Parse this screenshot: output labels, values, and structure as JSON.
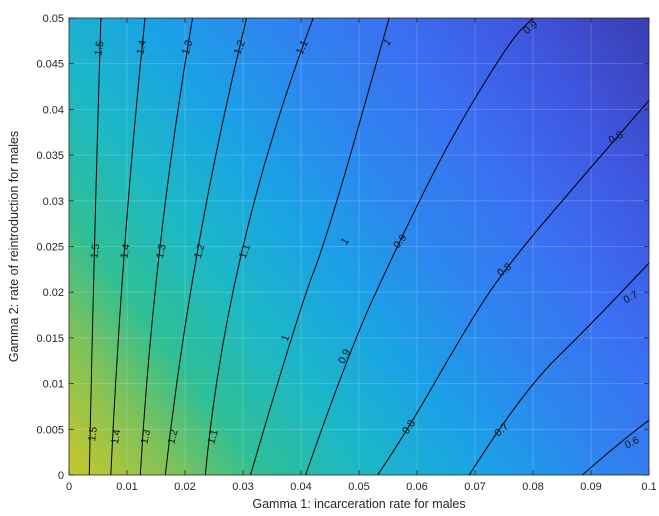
{
  "chart_data": {
    "type": "contour",
    "xlabel": "Gamma 1: incarceration rate for males",
    "ylabel": "Gamma 2: rate of reintroduction for males",
    "xlim": [
      0,
      0.1
    ],
    "ylim": [
      0,
      0.05
    ],
    "xticks": [
      "0",
      "0.01",
      "0.02",
      "0.03",
      "0.04",
      "0.05",
      "0.06",
      "0.07",
      "0.08",
      "0.09",
      "0.1"
    ],
    "yticks": [
      "0",
      "0.005",
      "0.01",
      "0.015",
      "0.02",
      "0.025",
      "0.03",
      "0.035",
      "0.04",
      "0.045",
      "0.05"
    ],
    "grid": true,
    "colormap": "parula",
    "contours": [
      {
        "level": "1.5",
        "points": [
          [
            0.0035,
            0
          ],
          [
            0.0044,
            0.025
          ],
          [
            0.0055,
            0.05
          ]
        ],
        "labels": [
          [
            0.004,
            0.0045,
            -82
          ],
          [
            0.0044,
            0.0245,
            -82
          ],
          [
            0.0051,
            0.0467,
            -82
          ]
        ]
      },
      {
        "level": "1.4",
        "points": [
          [
            0.0072,
            0
          ],
          [
            0.0096,
            0.025
          ],
          [
            0.0131,
            0.05
          ]
        ],
        "labels": [
          [
            0.008,
            0.0042,
            -80
          ],
          [
            0.0096,
            0.0245,
            -80
          ],
          [
            0.0124,
            0.0468,
            -78
          ]
        ]
      },
      {
        "level": "1.3",
        "points": [
          [
            0.0123,
            0
          ],
          [
            0.0157,
            0.025
          ],
          [
            0.0213,
            0.05
          ]
        ],
        "labels": [
          [
            0.0131,
            0.0042,
            -78
          ],
          [
            0.0158,
            0.0245,
            -78
          ],
          [
            0.0203,
            0.0468,
            -74
          ]
        ]
      },
      {
        "level": "1.2",
        "points": [
          [
            0.0166,
            0
          ],
          [
            0.0223,
            0.025
          ],
          [
            0.0306,
            0.05
          ]
        ],
        "labels": [
          [
            0.0178,
            0.0042,
            -76
          ],
          [
            0.0224,
            0.0245,
            -74
          ],
          [
            0.0293,
            0.0468,
            -70
          ]
        ]
      },
      {
        "level": "1.1",
        "points": [
          [
            0.0235,
            0
          ],
          [
            0.03,
            0.025
          ],
          [
            0.0421,
            0.05
          ]
        ],
        "labels": [
          [
            0.0247,
            0.0042,
            -74
          ],
          [
            0.0302,
            0.0245,
            -70
          ],
          [
            0.0401,
            0.0468,
            -64
          ]
        ]
      },
      {
        "level": "1",
        "points": [
          [
            0.0313,
            0
          ],
          [
            0.0395,
            0.0178
          ],
          [
            0.0445,
            0.026
          ],
          [
            0.0552,
            0.05
          ]
        ],
        "labels": [
          [
            0.0372,
            0.015,
            -68
          ],
          [
            0.0475,
            0.0256,
            -56
          ],
          [
            0.0548,
            0.0474,
            -50
          ]
        ]
      },
      {
        "level": "0.9",
        "points": [
          [
            0.0408,
            0
          ],
          [
            0.0482,
            0.0135
          ],
          [
            0.057,
            0.0256
          ],
          [
            0.0655,
            0.0365
          ],
          [
            0.076,
            0.0475
          ],
          [
            0.08,
            0.05
          ]
        ],
        "labels": [
          [
            0.0474,
            0.013,
            -64
          ],
          [
            0.057,
            0.0256,
            -52
          ],
          [
            0.0795,
            0.049,
            -36
          ]
        ]
      },
      {
        "level": "0.8",
        "points": [
          [
            0.0532,
            0
          ],
          [
            0.058,
            0.0045
          ],
          [
            0.0682,
            0.0158
          ],
          [
            0.075,
            0.0225
          ],
          [
            0.088,
            0.0322
          ],
          [
            0.1,
            0.041
          ]
        ],
        "labels": [
          [
            0.0585,
            0.0053,
            -55
          ],
          [
            0.075,
            0.0225,
            -38
          ],
          [
            0.0942,
            0.037,
            -30
          ]
        ]
      },
      {
        "level": "0.7",
        "points": [
          [
            0.069,
            0
          ],
          [
            0.078,
            0.009
          ],
          [
            0.09,
            0.0165
          ],
          [
            0.1,
            0.0232
          ]
        ],
        "labels": [
          [
            0.0745,
            0.005,
            -42
          ],
          [
            0.0968,
            0.0195,
            -28
          ]
        ]
      },
      {
        "level": "0.6",
        "points": [
          [
            0.0885,
            0
          ],
          [
            0.095,
            0.0035
          ],
          [
            0.1,
            0.006
          ]
        ],
        "labels": [
          [
            0.097,
            0.0036,
            -27
          ]
        ]
      }
    ]
  }
}
